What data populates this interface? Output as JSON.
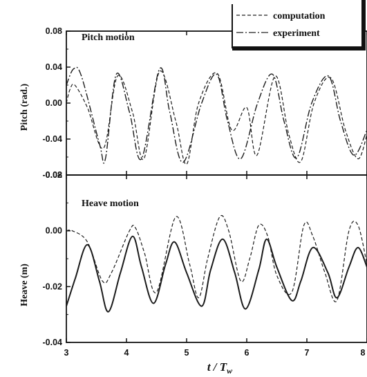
{
  "chart_data": [
    {
      "type": "line",
      "title": "Pitch motion",
      "xlabel": "",
      "ylabel": "Pitch (rad.)",
      "xlim": [
        3,
        8
      ],
      "ylim": [
        -0.08,
        0.08
      ],
      "yticks": [
        "0.08",
        "0.04",
        "0.00",
        "-0.04",
        "-0.08"
      ],
      "legend": {
        "position": "top-right",
        "entries": [
          "computation",
          "experiment"
        ]
      },
      "series": [
        {
          "name": "computation",
          "style": "dashed",
          "x": [
            3.0,
            3.06,
            3.14,
            3.35,
            3.62,
            3.85,
            4.1,
            4.29,
            4.55,
            4.82,
            5.0,
            5.2,
            5.51,
            5.75,
            6.0,
            6.17,
            6.47,
            6.7,
            6.9,
            7.12,
            7.4,
            7.64,
            7.85,
            8.0
          ],
          "y": [
            0.0,
            0.015,
            0.02,
            -0.005,
            -0.05,
            0.03,
            -0.01,
            -0.062,
            0.035,
            -0.02,
            -0.068,
            0.0,
            0.033,
            -0.03,
            -0.005,
            -0.058,
            0.03,
            -0.035,
            -0.065,
            0.0,
            0.028,
            -0.03,
            -0.062,
            -0.035
          ]
        },
        {
          "name": "experiment",
          "style": "dash-dot",
          "x": [
            3.0,
            3.12,
            3.25,
            3.55,
            3.65,
            3.83,
            4.05,
            4.25,
            4.55,
            4.72,
            4.94,
            5.25,
            5.5,
            5.68,
            5.9,
            6.18,
            6.43,
            6.62,
            6.83,
            7.08,
            7.36,
            7.56,
            7.78,
            8.0
          ],
          "y": [
            0.02,
            0.038,
            0.03,
            -0.045,
            -0.062,
            0.032,
            -0.01,
            -0.062,
            0.038,
            -0.01,
            -0.066,
            0.0,
            0.032,
            -0.02,
            -0.062,
            0.0,
            0.032,
            -0.02,
            -0.061,
            0.0,
            0.03,
            -0.02,
            -0.058,
            -0.03
          ]
        }
      ]
    },
    {
      "type": "line",
      "title": "Heave motion",
      "xlabel": "t / Tw",
      "ylabel": "Heave (m)",
      "xlim": [
        3,
        8
      ],
      "ylim": [
        -0.04,
        0.02
      ],
      "xticks": [
        "3",
        "4",
        "5",
        "6",
        "7",
        "8"
      ],
      "yticks": [
        "0.02",
        "0.00",
        "-0.02",
        "-0.04"
      ],
      "series": [
        {
          "name": "computation",
          "style": "dashed",
          "x": [
            3.0,
            3.1,
            3.35,
            3.6,
            3.75,
            4.05,
            4.15,
            4.3,
            4.5,
            4.82,
            5.05,
            5.2,
            5.35,
            5.55,
            5.7,
            5.9,
            6.05,
            6.2,
            6.35,
            6.5,
            6.75,
            6.95,
            7.1,
            7.3,
            7.5,
            7.7,
            7.85,
            8.0
          ],
          "y": [
            0.0,
            0.0,
            -0.004,
            -0.018,
            -0.015,
            0.0,
            0.001,
            -0.008,
            -0.022,
            0.005,
            -0.012,
            -0.024,
            -0.01,
            0.005,
            0.0,
            -0.018,
            -0.01,
            0.002,
            -0.002,
            -0.016,
            -0.022,
            0.002,
            -0.002,
            -0.015,
            -0.025,
            0.0,
            0.002,
            -0.012
          ]
        },
        {
          "name": "experiment",
          "style": "solid",
          "x": [
            3.0,
            3.15,
            3.35,
            3.55,
            3.7,
            3.9,
            4.1,
            4.25,
            4.45,
            4.65,
            4.8,
            5.0,
            5.25,
            5.4,
            5.6,
            5.8,
            5.98,
            6.2,
            6.33,
            6.5,
            6.75,
            6.9,
            7.1,
            7.35,
            7.5,
            7.7,
            7.85,
            8.0
          ],
          "y": [
            -0.027,
            -0.017,
            -0.005,
            -0.018,
            -0.029,
            -0.015,
            -0.002,
            -0.013,
            -0.026,
            -0.012,
            -0.004,
            -0.015,
            -0.027,
            -0.014,
            -0.003,
            -0.015,
            -0.028,
            -0.014,
            -0.003,
            -0.013,
            -0.025,
            -0.018,
            -0.006,
            -0.015,
            -0.024,
            -0.013,
            -0.006,
            -0.013
          ]
        }
      ]
    }
  ]
}
